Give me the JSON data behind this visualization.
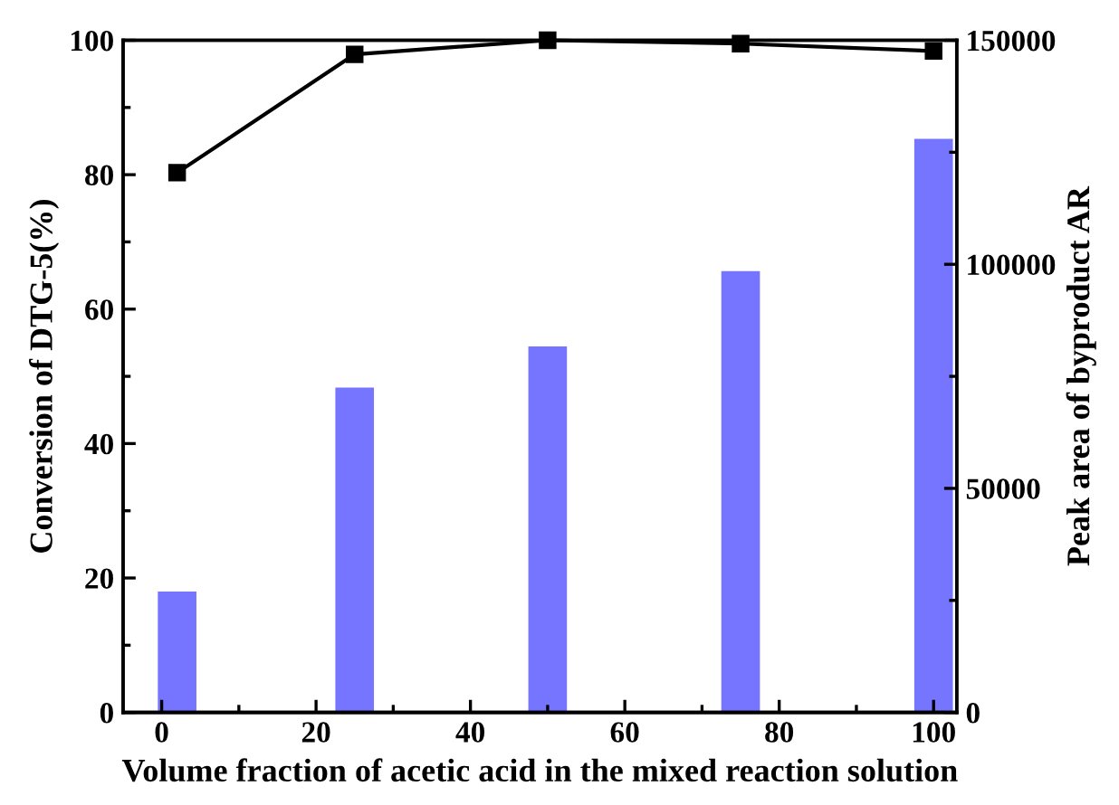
{
  "chart_data": {
    "type": "bar",
    "xlabel": "Volume fraction of acetic acid in the mixed reaction solution",
    "ylabel": "Conversion of DTG-5(%)",
    "y2label": "Peak area of byproduct AR",
    "x": [
      2,
      25,
      50,
      75,
      100
    ],
    "series": [
      {
        "axis": "y2",
        "color": "#7575ff",
        "values": [
          27000,
          72500,
          81700,
          98500,
          128000
        ]
      },
      {
        "type": "line",
        "axis": "y",
        "color": "#000000",
        "marker": "square",
        "line_style": "solid",
        "values": [
          80.3,
          97.9,
          100,
          99.5,
          98.4
        ]
      }
    ],
    "xlim": [
      -5,
      103
    ],
    "xticks": [
      0,
      20,
      40,
      60,
      80,
      100
    ],
    "ylim": [
      0,
      100
    ],
    "yticks": [
      0,
      20,
      40,
      60,
      80,
      100
    ],
    "y2lim": [
      0,
      150000
    ],
    "y2ticks": [
      0,
      50000,
      100000,
      150000
    ],
    "grid": false,
    "legend": false
  }
}
